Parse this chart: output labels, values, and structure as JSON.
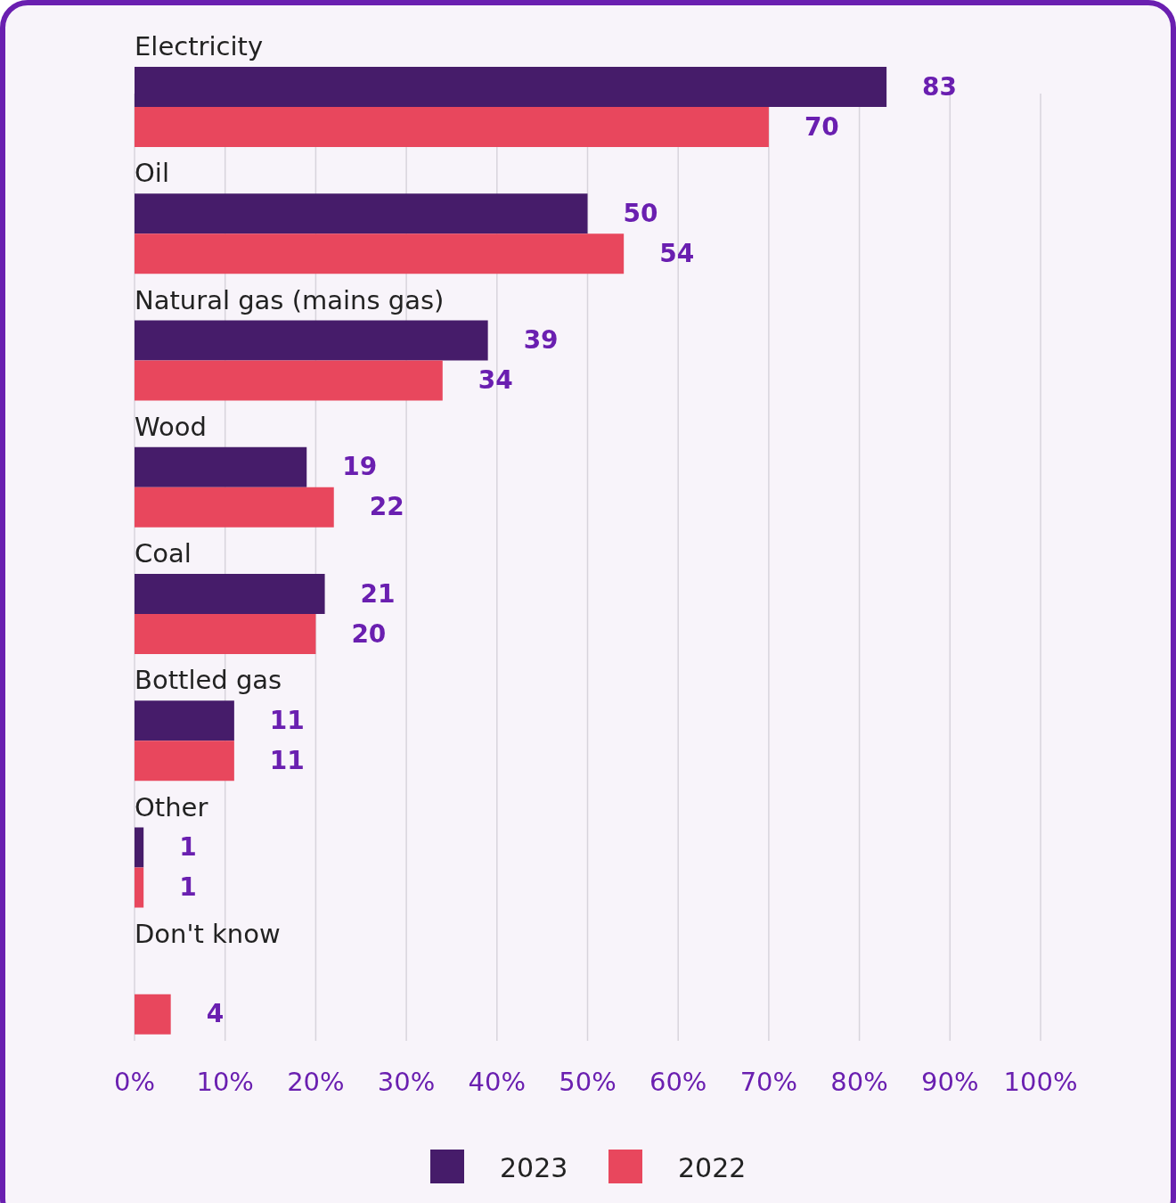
{
  "chart_data": {
    "type": "bar",
    "orientation": "horizontal",
    "categories": [
      "Electricity",
      "Oil",
      "Natural gas (mains gas)",
      "Wood",
      "Coal",
      "Bottled gas",
      "Other",
      "Don't know"
    ],
    "series": [
      {
        "name": "2023",
        "color": "#461c6a",
        "values": [
          83,
          50,
          39,
          19,
          21,
          11,
          1,
          null
        ]
      },
      {
        "name": "2022",
        "color": "#e8475d",
        "values": [
          70,
          54,
          34,
          22,
          20,
          11,
          1,
          4
        ]
      }
    ],
    "xlim": [
      0,
      100
    ],
    "xticks": [
      {
        "value": 0,
        "label": "0%"
      },
      {
        "value": 10,
        "label": "10%"
      },
      {
        "value": 20,
        "label": "20%"
      },
      {
        "value": 30,
        "label": "30%"
      },
      {
        "value": 40,
        "label": "40%"
      },
      {
        "value": 50,
        "label": "50%"
      },
      {
        "value": 60,
        "label": "60%"
      },
      {
        "value": 70,
        "label": "70%"
      },
      {
        "value": 80,
        "label": "80%"
      },
      {
        "value": 90,
        "label": "90%"
      },
      {
        "value": 100,
        "label": "100%"
      }
    ],
    "grid": "x",
    "data_labels": true,
    "legend": "bottom"
  }
}
